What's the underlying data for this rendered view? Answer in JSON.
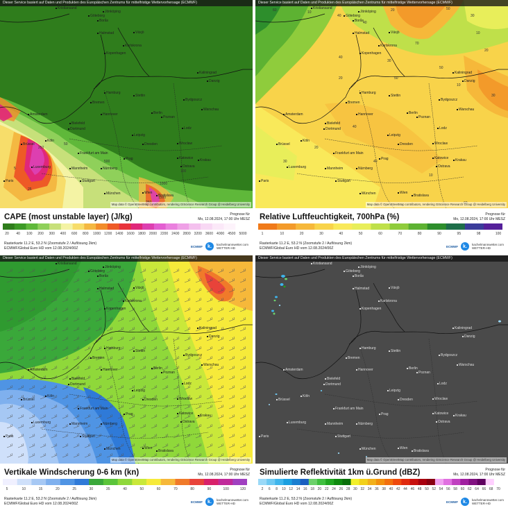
{
  "attribution_top": "Dieser Service basiert auf Daten und Produkten des Europäischen Zentrums für mittelfristige Wettervorhersage (ECMWF)",
  "credits": "Map data © OpenStreetMap contributors, rendering GIScience Research Group @ Heidelberg University",
  "forecast_label": "Prognose für",
  "forecast_time": "Mo, 12.08.2024, 17:00 Uhr MESZ",
  "grid_info": "Rasterkarte 11.2 E, 53.2 N (Zoomstufe 2 / Auflösung 2km)",
  "model_info": "ECMWF/Global Euro HD vom 12.08.2024/00Z",
  "logo_ecmwf": "ECMWF",
  "logo_km_letter": "k.",
  "logo_km_name": "kachelmannwetter.com",
  "logo_km_sub": "WETTER-HD",
  "cities": [
    {
      "name": "Kristiansand"
    },
    {
      "name": "Jönköping"
    },
    {
      "name": "Göteborg"
    },
    {
      "name": "Borås"
    },
    {
      "name": "Halmstad"
    },
    {
      "name": "Växjö"
    },
    {
      "name": "Karlskrona"
    },
    {
      "name": "Kopenhagen"
    },
    {
      "name": "Kaliningrad"
    },
    {
      "name": "Danzig"
    },
    {
      "name": "Hamburg"
    },
    {
      "name": "Stettin"
    },
    {
      "name": "Bremen"
    },
    {
      "name": "Bydgoszcz"
    },
    {
      "name": "Hannover"
    },
    {
      "name": "Berlin"
    },
    {
      "name": "Poznan"
    },
    {
      "name": "Warschau"
    },
    {
      "name": "Amsterdam"
    },
    {
      "name": "Bielefeld"
    },
    {
      "name": "Dortmund"
    },
    {
      "name": "Leipzig"
    },
    {
      "name": "Lodz"
    },
    {
      "name": "Brüssel"
    },
    {
      "name": "Köln"
    },
    {
      "name": "Dresden"
    },
    {
      "name": "Wroclaw"
    },
    {
      "name": "Frankfurt am Main"
    },
    {
      "name": "Katowice"
    },
    {
      "name": "Krakau"
    },
    {
      "name": "Ostrava"
    },
    {
      "name": "Luxemburg"
    },
    {
      "name": "Mannheim"
    },
    {
      "name": "Nürnberg"
    },
    {
      "name": "Prag"
    },
    {
      "name": "Paris"
    },
    {
      "name": "Stuttgart"
    },
    {
      "name": "Wien"
    },
    {
      "name": "Bratislava"
    },
    {
      "name": "München"
    }
  ],
  "panels": [
    {
      "title": "CAPE (most unstable layer) (J/kg)",
      "ticks": [
        "20",
        "40",
        "100",
        "200",
        "300",
        "400",
        "600",
        "800",
        "1000",
        "1200",
        "1400",
        "1600",
        "1800",
        "2000",
        "2200",
        "2400",
        "2800",
        "3200",
        "3600",
        "4000",
        "4500",
        "5000"
      ],
      "colors": [
        "#2f7d1c",
        "#3d9a26",
        "#5fb83a",
        "#8fd05a",
        "#c7e07a",
        "#f4f3a4",
        "#f7dd6a",
        "#f4b842",
        "#f28c2a",
        "#ee5a26",
        "#e8333b",
        "#e0277a",
        "#dd3fb0",
        "#e35ed1",
        "#ea80de",
        "#efa0e6",
        "#f4c0ee",
        "#f8d8f4",
        "#fbe8f8",
        "#fdf3fb",
        "#ffffff"
      ],
      "map_labels": [
        "5",
        "25",
        "250",
        "50",
        "1000",
        "100",
        "500",
        "250",
        "1500"
      ]
    },
    {
      "title": "Relative Luftfeuchtigkeit, 700hPa (%)",
      "ticks": [
        "1",
        "10",
        "20",
        "30",
        "40",
        "50",
        "60",
        "70",
        "80",
        "90",
        "95",
        "98",
        "100"
      ],
      "colors": [
        "#f07a1a",
        "#f39a2a",
        "#f6b83a",
        "#f8d34a",
        "#f9e95a",
        "#e8ee5a",
        "#bfe04a",
        "#8fcc3c",
        "#5db232",
        "#2d8e2c",
        "#1e6e4a",
        "#3a3c9a",
        "#55209a"
      ],
      "map_labels": [
        "60",
        "10",
        "40",
        "40",
        "20",
        "50",
        "30",
        "10",
        "20",
        "70",
        "30",
        "40",
        "50",
        "10",
        "30",
        "50",
        "20",
        "40",
        "20",
        "30",
        "40",
        "10",
        "60"
      ]
    },
    {
      "title": "Vertikale Windscherung 0-6 km (kn)",
      "ticks": [
        "5",
        "10",
        "15",
        "20",
        "25",
        "30",
        "35",
        "40",
        "50",
        "60",
        "70",
        "80",
        "90",
        "100",
        "120"
      ],
      "colors": [
        "#f0f0ff",
        "#cfe0fa",
        "#a6c8f4",
        "#7fb0ee",
        "#4f94e4",
        "#2f7ad8",
        "#3aa83a",
        "#5bc43a",
        "#8fd83a",
        "#c9e83a",
        "#f6ea3a",
        "#f6b83a",
        "#f07a2a",
        "#e8433a",
        "#d8216a",
        "#c02a9a",
        "#a040c0"
      ],
      "map_labels": []
    },
    {
      "title": "Simulierte Reflektivität 1km ü.Grund (dBZ)",
      "ticks": [
        "2",
        "6",
        "8",
        "10",
        "12",
        "14",
        "16",
        "18",
        "20",
        "22",
        "24",
        "26",
        "28",
        "30",
        "32",
        "34",
        "36",
        "38",
        "40",
        "42",
        "44",
        "46",
        "48",
        "50",
        "52",
        "54",
        "56",
        "58",
        "60",
        "62",
        "64",
        "66",
        "68",
        "70"
      ],
      "colors": [
        "#9ad9f7",
        "#6ec9f2",
        "#3eb5ec",
        "#1a9fe0",
        "#1a7fd0",
        "#1a5fc0",
        "#6cd06a",
        "#3fbf3f",
        "#1fa61f",
        "#0e8a0e",
        "#0a6f0a",
        "#f2f02a",
        "#f2d01a",
        "#f2b01a",
        "#f2900e",
        "#f2700e",
        "#ef4a0e",
        "#e02a0e",
        "#c8100e",
        "#a8000e",
        "#880010",
        "#f0a0f0",
        "#e070e0",
        "#c040c0",
        "#a020a0",
        "#801080",
        "#600060",
        "#ffd0ff",
        "#ffffff"
      ],
      "map_labels": []
    }
  ]
}
